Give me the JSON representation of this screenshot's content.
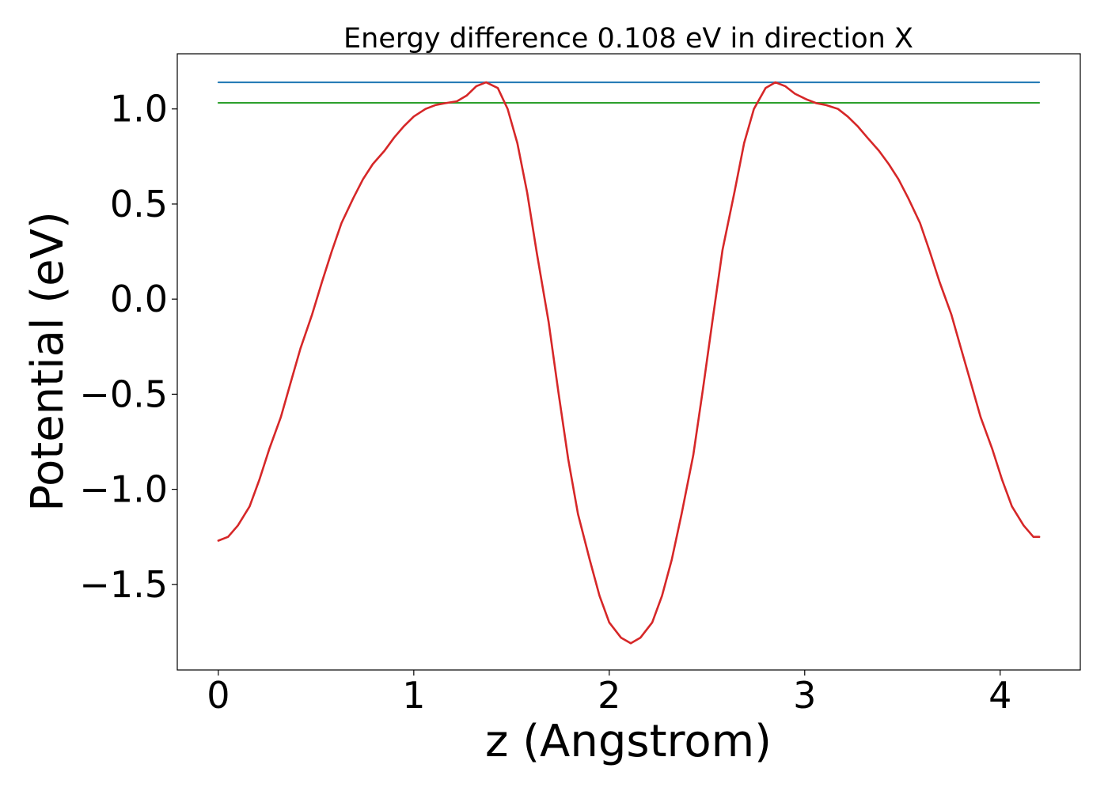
{
  "chart_data": {
    "type": "line",
    "title": "Energy difference 0.108 eV in direction X",
    "xlabel": "z (Angstrom)",
    "ylabel": "Potential (eV)",
    "xlim": [
      -0.21,
      4.41
    ],
    "ylim": [
      -1.95,
      1.29
    ],
    "xticks": [
      0,
      1,
      2,
      3,
      4
    ],
    "xtick_labels": [
      "0",
      "1",
      "2",
      "3",
      "4"
    ],
    "yticks": [
      -1.5,
      -1.0,
      -0.5,
      0.0,
      0.5,
      1.0
    ],
    "ytick_labels": [
      "−1.5",
      "−1.0",
      "−0.5",
      "0.0",
      "0.5",
      "1.0"
    ],
    "grid": false,
    "series": [
      {
        "color": "#1f77b4",
        "x": [
          0.0,
          4.2
        ],
        "y": [
          1.14,
          1.14
        ]
      },
      {
        "color": "#2ca02c",
        "x": [
          0.0,
          4.2
        ],
        "y": [
          1.032,
          1.032
        ]
      },
      {
        "color": "#d62728",
        "x": [
          0.0,
          0.05,
          0.1,
          0.16,
          0.21,
          0.26,
          0.32,
          0.37,
          0.42,
          0.48,
          0.53,
          0.58,
          0.63,
          0.69,
          0.74,
          0.79,
          0.85,
          0.9,
          0.95,
          1.0,
          1.06,
          1.11,
          1.16,
          1.22,
          1.27,
          1.32,
          1.37,
          1.43,
          1.48,
          1.53,
          1.58,
          1.63,
          1.69,
          1.74,
          1.79,
          1.84,
          1.9,
          1.95,
          2.0,
          2.06,
          2.11,
          2.16,
          2.22,
          2.27,
          2.32,
          2.37,
          2.43,
          2.48,
          2.53,
          2.58,
          2.64,
          2.69,
          2.74,
          2.8,
          2.85,
          2.9,
          2.95,
          3.01,
          3.06,
          3.11,
          3.17,
          3.22,
          3.27,
          3.32,
          3.38,
          3.43,
          3.48,
          3.53,
          3.59,
          3.64,
          3.69,
          3.75,
          3.8,
          3.85,
          3.9,
          3.96,
          4.01,
          4.06,
          4.12,
          4.17,
          4.2
        ],
        "y": [
          -1.27,
          -1.25,
          -1.19,
          -1.09,
          -0.95,
          -0.79,
          -0.62,
          -0.44,
          -0.26,
          -0.08,
          0.09,
          0.25,
          0.4,
          0.53,
          0.63,
          0.71,
          0.78,
          0.85,
          0.91,
          0.96,
          1.0,
          1.02,
          1.03,
          1.04,
          1.07,
          1.12,
          1.14,
          1.11,
          1.0,
          0.82,
          0.56,
          0.24,
          -0.12,
          -0.49,
          -0.84,
          -1.13,
          -1.37,
          -1.56,
          -1.7,
          -1.78,
          -1.81,
          -1.78,
          -1.7,
          -1.56,
          -1.37,
          -1.13,
          -0.82,
          -0.47,
          -0.1,
          0.26,
          0.56,
          0.82,
          1.0,
          1.11,
          1.14,
          1.12,
          1.08,
          1.05,
          1.03,
          1.02,
          1.0,
          0.96,
          0.91,
          0.85,
          0.78,
          0.71,
          0.63,
          0.53,
          0.4,
          0.25,
          0.09,
          -0.08,
          -0.26,
          -0.44,
          -0.62,
          -0.79,
          -0.95,
          -1.09,
          -1.19,
          -1.25,
          -1.25
        ]
      }
    ]
  }
}
